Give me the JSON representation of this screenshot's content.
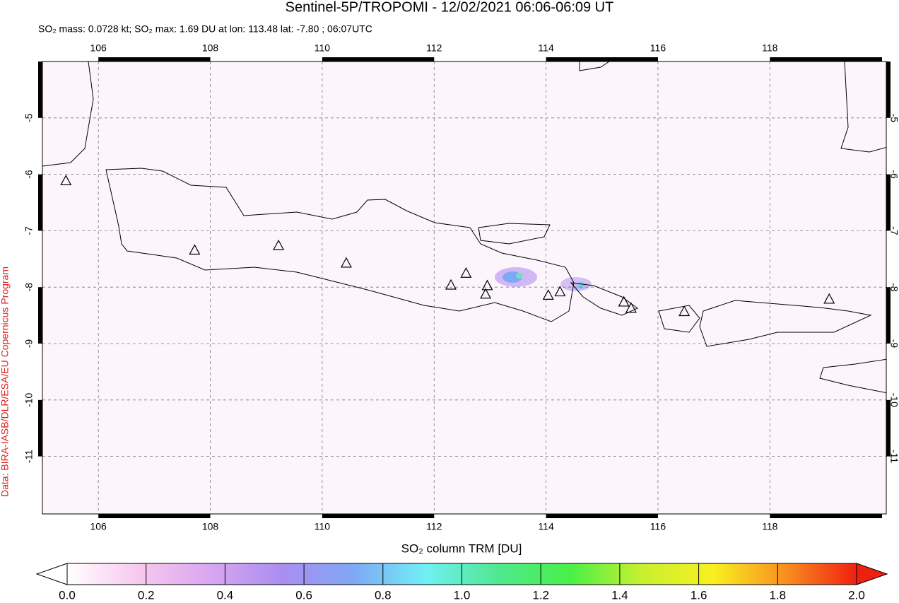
{
  "chart_data": {
    "type": "map",
    "title": "Sentinel-5P/TROPOMI - 12/02/2021 06:06-06:09 UT",
    "subtitle": "SO₂ mass: 0.0728 kt; SO₂ max: 1.69 DU at lon: 113.48 lat: -7.80 ; 06:07UTC",
    "credit": "Data: BIRA-IASB/DLR/ESA/EU Copernicus Program",
    "xlim": [
      105,
      120.08
    ],
    "ylim": [
      -12.02,
      -4
    ],
    "xticks": [
      106,
      108,
      110,
      112,
      114,
      116,
      118
    ],
    "yticks": [
      -5,
      -6,
      -7,
      -8,
      -9,
      -10,
      -11
    ],
    "grid": true,
    "volcanoes": {
      "lon": [
        105.42,
        107.72,
        109.22,
        110.43,
        112.3,
        112.57,
        112.95,
        112.92,
        114.04,
        114.25,
        115.39,
        115.52,
        116.47,
        119.06
      ],
      "lat": [
        -6.11,
        -7.34,
        -7.26,
        -7.57,
        -7.96,
        -7.75,
        -7.97,
        -8.12,
        -8.14,
        -8.08,
        -8.26,
        -8.37,
        -8.43,
        -8.21
      ]
    },
    "colorbar": {
      "label": "SO₂ column TRM [DU]",
      "lim": [
        0,
        2
      ],
      "ticks": [
        {
          "value": 0,
          "label": "0.0"
        },
        {
          "value": 0.2,
          "label": "0.2"
        },
        {
          "value": 0.4,
          "label": "0.4"
        },
        {
          "value": 0.6,
          "label": "0.6"
        },
        {
          "value": 0.8,
          "label": "0.8"
        },
        {
          "value": 1,
          "label": "1.0"
        },
        {
          "value": 1.2,
          "label": "1.2"
        },
        {
          "value": 1.4,
          "label": "1.4"
        },
        {
          "value": 1.6,
          "label": "1.6"
        },
        {
          "value": 1.8,
          "label": "1.8"
        },
        {
          "value": 2,
          "label": "2.0"
        }
      ],
      "colors": [
        "#ffffff",
        "#f7c8ee",
        "#d9a6f0",
        "#a98ef0",
        "#7fa8f5",
        "#70f0f5",
        "#50e890",
        "#48f048",
        "#c8f030",
        "#f8f020",
        "#f89020",
        "#f02010"
      ]
    }
  }
}
